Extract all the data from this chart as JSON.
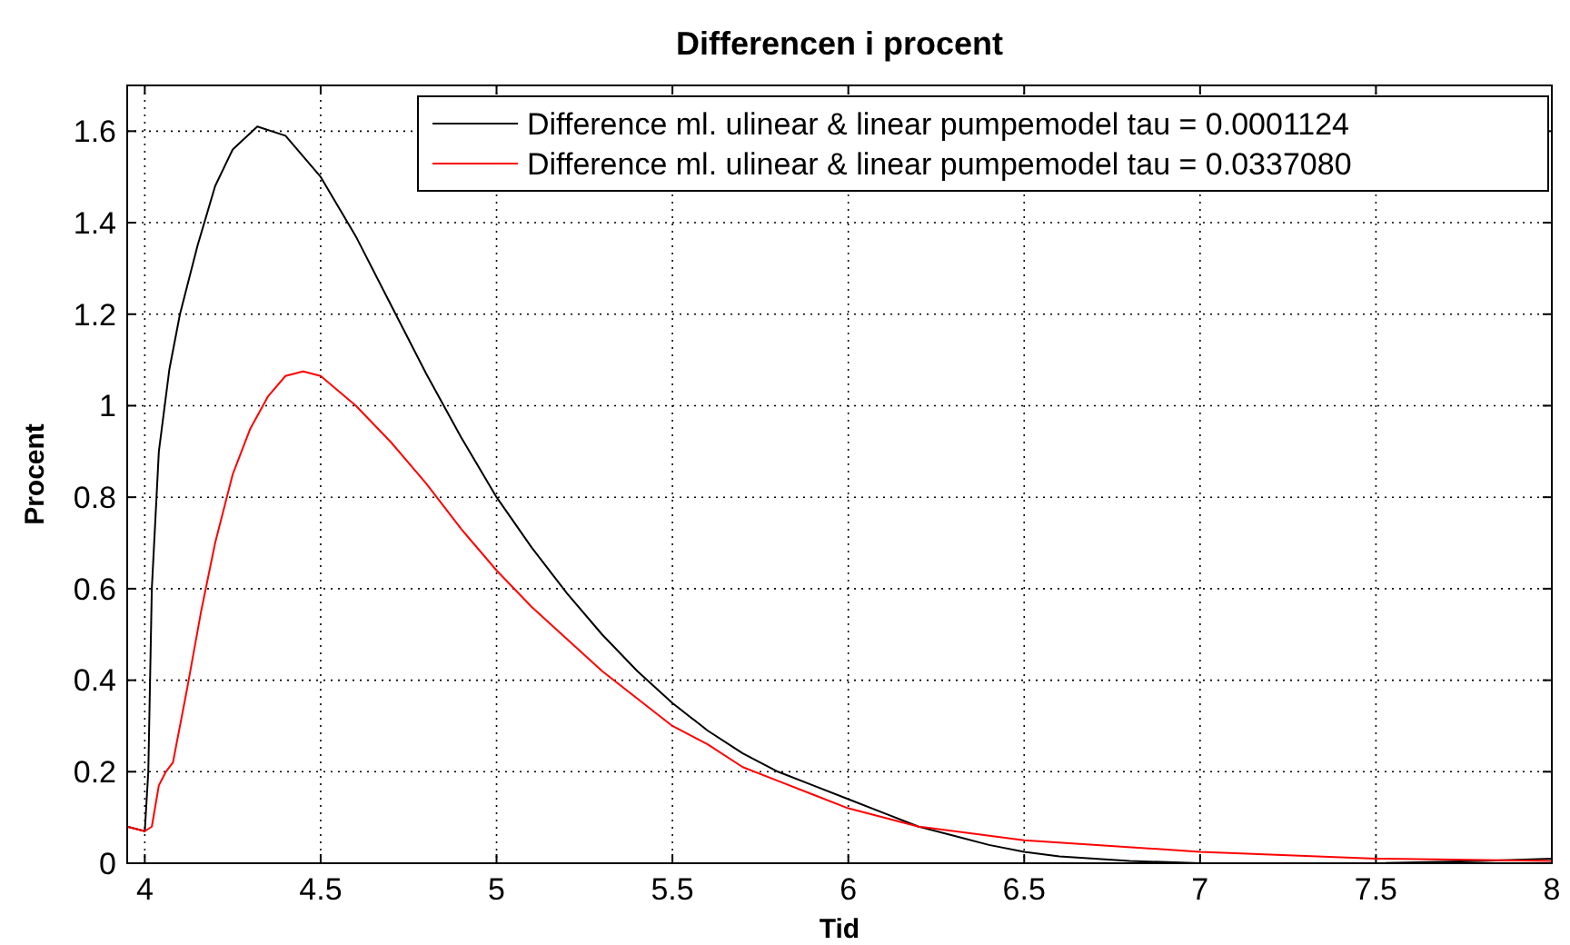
{
  "chart_data": {
    "type": "line",
    "title": "Differencen i procent",
    "xlabel": "Tid",
    "ylabel": "Procent",
    "xlim": [
      3.95,
      8
    ],
    "ylim": [
      0,
      1.7
    ],
    "xticks": [
      4,
      4.5,
      5,
      5.5,
      6,
      6.5,
      7,
      7.5,
      8
    ],
    "yticks": [
      0,
      0.2,
      0.4,
      0.6,
      0.8,
      1,
      1.2,
      1.4,
      1.6
    ],
    "grid": true,
    "legend": "top right",
    "line_style": "solid",
    "series": [
      {
        "name": "Difference ml. ulinear & linear pumpemodel tau = 0.0001124",
        "color": "#000000",
        "x": [
          3.95,
          4.0,
          4.01,
          4.02,
          4.04,
          4.07,
          4.1,
          4.15,
          4.2,
          4.25,
          4.32,
          4.4,
          4.5,
          4.6,
          4.7,
          4.8,
          4.9,
          5.0,
          5.1,
          5.2,
          5.3,
          5.4,
          5.5,
          5.6,
          5.7,
          5.8,
          5.9,
          6.0,
          6.1,
          6.2,
          6.3,
          6.4,
          6.5,
          6.6,
          6.8,
          7.0,
          7.5,
          7.8,
          8.0
        ],
        "values": [
          0.08,
          0.07,
          0.2,
          0.6,
          0.9,
          1.08,
          1.2,
          1.35,
          1.48,
          1.56,
          1.61,
          1.59,
          1.5,
          1.37,
          1.22,
          1.07,
          0.93,
          0.8,
          0.69,
          0.59,
          0.5,
          0.42,
          0.35,
          0.29,
          0.24,
          0.2,
          0.17,
          0.14,
          0.11,
          0.08,
          0.06,
          0.04,
          0.025,
          0.015,
          0.005,
          0.0,
          0.0,
          0.005,
          0.01
        ]
      },
      {
        "name": "Difference ml. ulinear & linear pumpemodel tau = 0.0337080",
        "color": "#ff0000",
        "x": [
          3.95,
          4.0,
          4.02,
          4.04,
          4.06,
          4.08,
          4.12,
          4.16,
          4.2,
          4.25,
          4.3,
          4.35,
          4.4,
          4.45,
          4.5,
          4.6,
          4.7,
          4.8,
          4.9,
          5.0,
          5.1,
          5.2,
          5.3,
          5.4,
          5.5,
          5.6,
          5.7,
          5.8,
          5.9,
          6.0,
          6.2,
          6.5,
          7.0,
          7.5,
          8.0
        ],
        "values": [
          0.08,
          0.07,
          0.08,
          0.17,
          0.2,
          0.22,
          0.38,
          0.55,
          0.7,
          0.85,
          0.95,
          1.02,
          1.065,
          1.075,
          1.065,
          1.0,
          0.92,
          0.83,
          0.73,
          0.64,
          0.56,
          0.49,
          0.42,
          0.36,
          0.3,
          0.26,
          0.21,
          0.18,
          0.15,
          0.12,
          0.08,
          0.05,
          0.025,
          0.01,
          0.005
        ]
      }
    ]
  }
}
